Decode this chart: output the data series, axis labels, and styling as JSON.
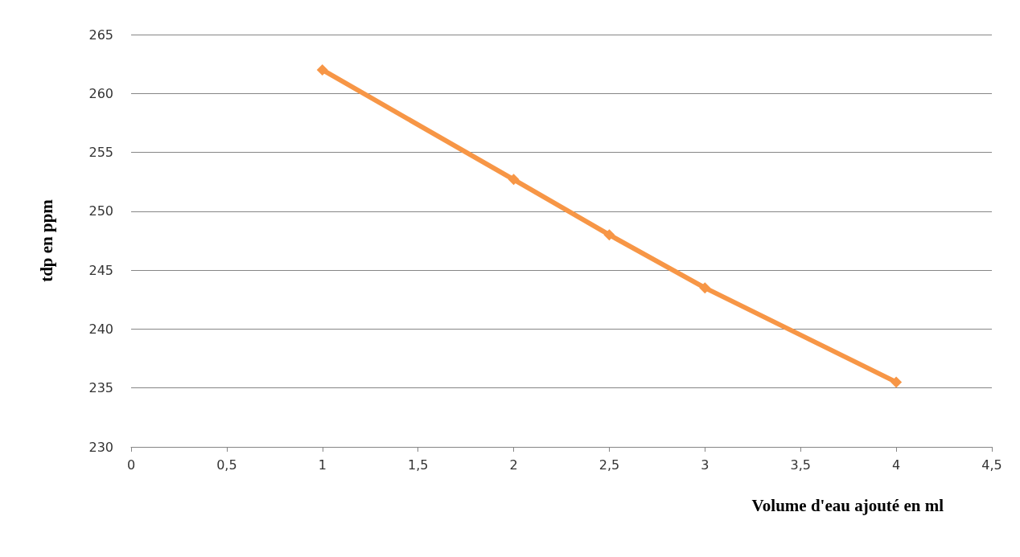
{
  "chart_data": {
    "type": "line",
    "xlabel": "Volume d'eau ajouté en ml",
    "ylabel": "tdp en ppm",
    "x": [
      1,
      2,
      2.5,
      3,
      4
    ],
    "series": [
      {
        "color": "#f79646",
        "values": [
          262,
          252.7,
          248,
          243.5,
          235.5
        ]
      }
    ],
    "xlim": [
      0,
      4.5
    ],
    "xticks": [
      0,
      {
        "value": 0.5,
        "label": "0,5"
      },
      1,
      {
        "value": 1.5,
        "label": "1,5"
      },
      2,
      {
        "value": 2.5,
        "label": "2,5"
      },
      3,
      {
        "value": 3.5,
        "label": "3,5"
      },
      4,
      {
        "value": 4.5,
        "label": "4,5"
      }
    ],
    "ylim": [
      230,
      265
    ],
    "yticks": [
      230,
      235,
      240,
      245,
      250,
      255,
      260,
      265
    ],
    "grid": "y",
    "marker": "diamond",
    "line_style": "solid"
  }
}
